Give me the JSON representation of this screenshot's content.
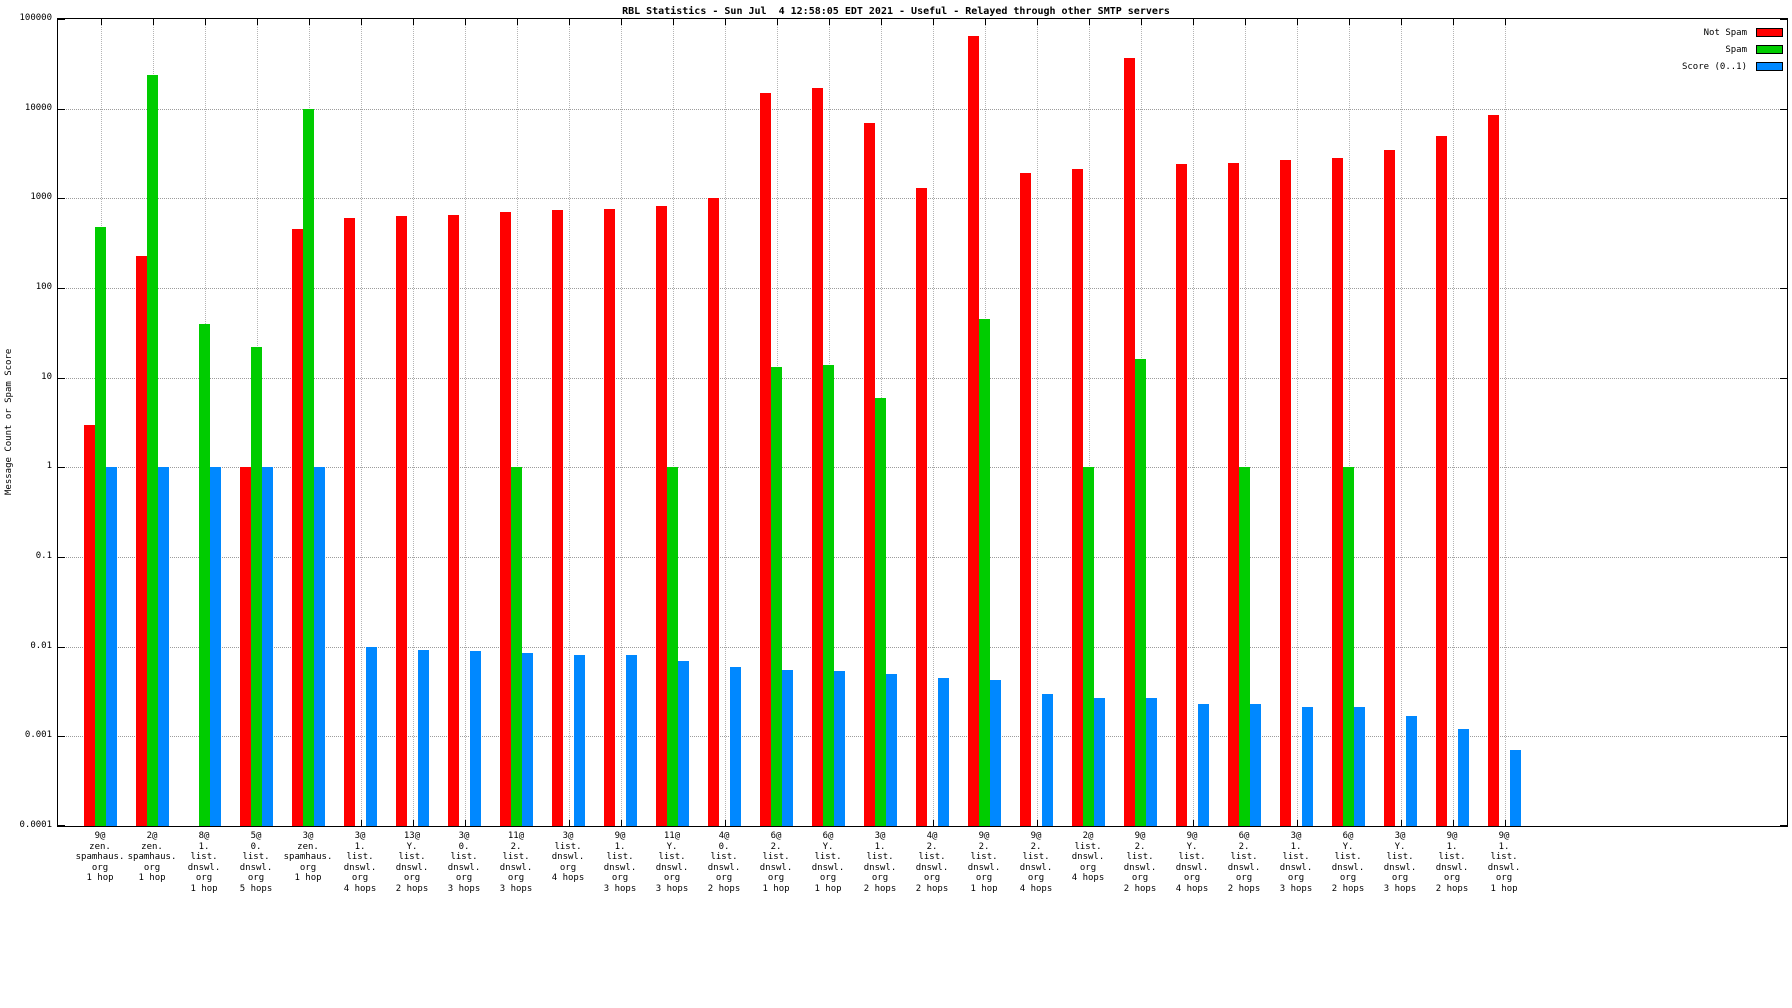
{
  "title": "RBL Statistics - Sun Jul  4 12:58:05 EDT 2021 - Useful - Relayed through other SMTP servers",
  "ylabel": "Message Count or Spam Score",
  "chart_data": {
    "type": "bar",
    "scale": "log",
    "grid": true,
    "legend_position": "top-right",
    "ylim": [
      0.0001,
      100000
    ],
    "ytick_labels": [
      "100000",
      "10000",
      "1000",
      "100",
      "10",
      "1",
      "0.1",
      "0.01",
      "0.001",
      "0.0001"
    ],
    "categories": [
      [
        "9@",
        "zen.",
        "spamhaus.",
        "org",
        "1 hop"
      ],
      [
        "2@",
        "zen.",
        "spamhaus.",
        "org",
        "1 hop"
      ],
      [
        "8@",
        "1.",
        "list.",
        "dnswl.",
        "org",
        "1 hop"
      ],
      [
        "5@",
        "0.",
        "list.",
        "dnswl.",
        "org",
        "5 hops"
      ],
      [
        "3@",
        "zen.",
        "spamhaus.",
        "org",
        "1 hop"
      ],
      [
        "3@",
        "1.",
        "list.",
        "dnswl.",
        "org",
        "4 hops"
      ],
      [
        "13@",
        "Y.",
        "list.",
        "dnswl.",
        "org",
        "2 hops"
      ],
      [
        "3@",
        "0.",
        "list.",
        "dnswl.",
        "org",
        "3 hops"
      ],
      [
        "11@",
        "2.",
        "list.",
        "dnswl.",
        "org",
        "3 hops"
      ],
      [
        "3@",
        "list.",
        "dnswl.",
        "org",
        "4 hops"
      ],
      [
        "9@",
        "1.",
        "list.",
        "dnswl.",
        "org",
        "3 hops"
      ],
      [
        "11@",
        "Y.",
        "list.",
        "dnswl.",
        "org",
        "3 hops"
      ],
      [
        "4@",
        "0.",
        "list.",
        "dnswl.",
        "org",
        "2 hops"
      ],
      [
        "6@",
        "2.",
        "list.",
        "dnswl.",
        "org",
        "1 hop"
      ],
      [
        "6@",
        "Y.",
        "list.",
        "dnswl.",
        "org",
        "1 hop"
      ],
      [
        "3@",
        "1.",
        "list.",
        "dnswl.",
        "org",
        "2 hops"
      ],
      [
        "4@",
        "2.",
        "list.",
        "dnswl.",
        "org",
        "2 hops"
      ],
      [
        "9@",
        "2.",
        "list.",
        "dnswl.",
        "org",
        "1 hop"
      ],
      [
        "9@",
        "2.",
        "list.",
        "dnswl.",
        "org",
        "4 hops"
      ],
      [
        "2@",
        "list.",
        "dnswl.",
        "org",
        "4 hops"
      ],
      [
        "9@",
        "2.",
        "list.",
        "dnswl.",
        "org",
        "2 hops"
      ],
      [
        "9@",
        "Y.",
        "list.",
        "dnswl.",
        "org",
        "4 hops"
      ],
      [
        "6@",
        "2.",
        "list.",
        "dnswl.",
        "org",
        "2 hops"
      ],
      [
        "3@",
        "1.",
        "list.",
        "dnswl.",
        "org",
        "3 hops"
      ],
      [
        "6@",
        "Y.",
        "list.",
        "dnswl.",
        "org",
        "2 hops"
      ],
      [
        "3@",
        "Y.",
        "list.",
        "dnswl.",
        "org",
        "3 hops"
      ],
      [
        "9@",
        "1.",
        "list.",
        "dnswl.",
        "org",
        "2 hops"
      ],
      [
        "9@",
        "1.",
        "list.",
        "dnswl.",
        "org",
        "1 hop"
      ]
    ],
    "series": [
      {
        "name": "Not Spam",
        "color": "#ff0000",
        "values": [
          3,
          230,
          null,
          1,
          450,
          600,
          630,
          660,
          700,
          750,
          760,
          830,
          1000,
          15000,
          17000,
          7000,
          1300,
          65000,
          1900,
          2100,
          37000,
          2400,
          2500,
          2700,
          2800,
          3500,
          5000,
          8500
        ]
      },
      {
        "name": "Spam",
        "color": "#00cc00",
        "values": [
          480,
          24000,
          40,
          22,
          10000,
          null,
          null,
          null,
          1,
          null,
          null,
          1,
          null,
          13,
          14,
          6,
          null,
          45,
          null,
          1,
          16,
          null,
          1,
          null,
          1,
          null,
          null,
          null
        ]
      },
      {
        "name": "Score (0..1)",
        "color": "#0088ff",
        "values": [
          1,
          1,
          1,
          1,
          1,
          0.01,
          0.0093,
          0.009,
          0.0085,
          0.008,
          0.008,
          0.007,
          0.006,
          0.0055,
          0.0053,
          0.005,
          0.0045,
          0.0043,
          0.003,
          0.0027,
          0.0027,
          0.0023,
          0.0023,
          0.0021,
          0.0021,
          0.0017,
          0.0012,
          0.0007
        ]
      }
    ]
  }
}
